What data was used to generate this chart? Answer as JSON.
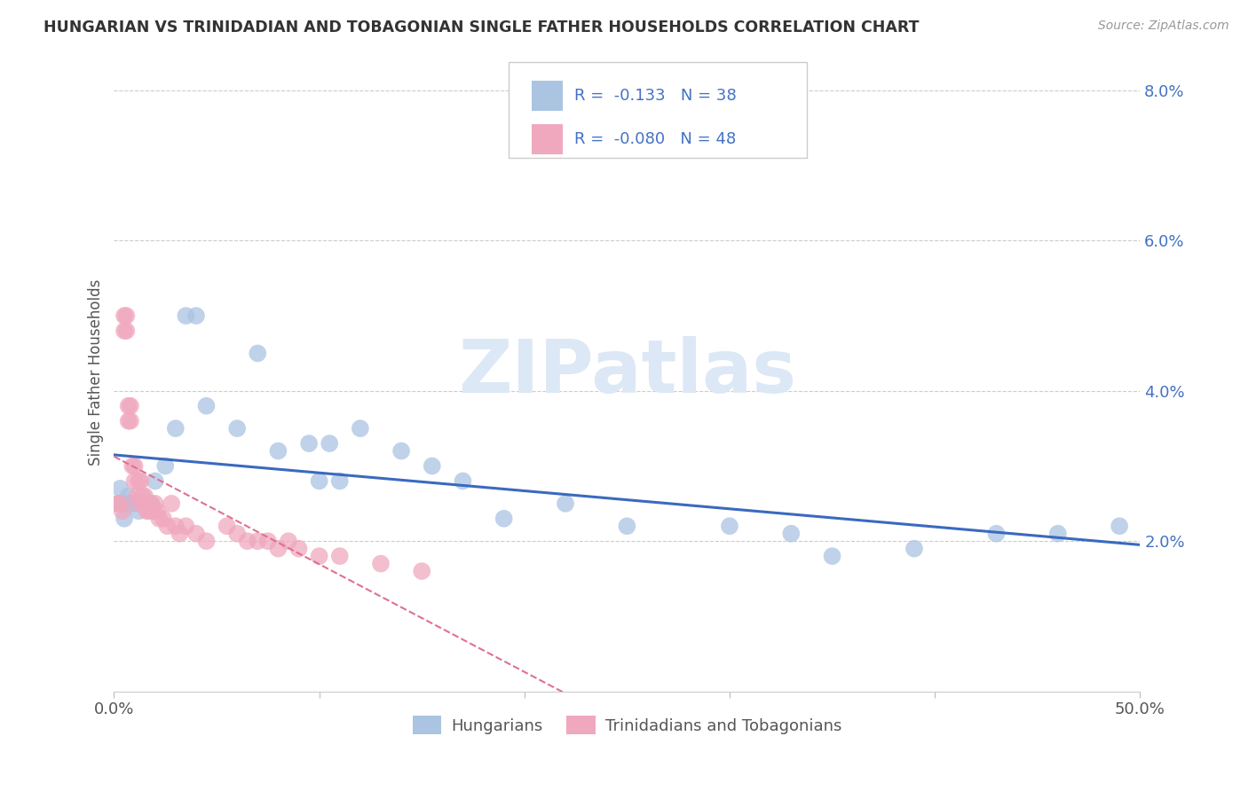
{
  "title": "HUNGARIAN VS TRINIDADIAN AND TOBAGONIAN SINGLE FATHER HOUSEHOLDS CORRELATION CHART",
  "source": "Source: ZipAtlas.com",
  "ylabel": "Single Father Households",
  "xlim": [
    0.0,
    0.5
  ],
  "ylim": [
    0.0,
    0.085
  ],
  "ytick_vals": [
    0.02,
    0.04,
    0.06,
    0.08
  ],
  "ytick_labels": [
    "2.0%",
    "4.0%",
    "6.0%",
    "8.0%"
  ],
  "xtick_vals": [
    0.0,
    0.1,
    0.2,
    0.3,
    0.4,
    0.5
  ],
  "xtick_labels": [
    "0.0%",
    "",
    "",
    "",
    "",
    "50.0%"
  ],
  "hungarian_color": "#aac4e2",
  "trinidadian_color": "#f0a8be",
  "hungarian_line_color": "#3a6abf",
  "trinidadian_line_color": "#e07090",
  "R_hungarian": -0.133,
  "N_hungarian": 38,
  "R_trinidadian": -0.08,
  "N_trinidadian": 48,
  "legend_labels": [
    "Hungarians",
    "Trinidadians and Tobagonians"
  ],
  "watermark_text": "ZIPatlas",
  "hun_x": [
    0.002,
    0.003,
    0.004,
    0.005,
    0.006,
    0.007,
    0.008,
    0.01,
    0.012,
    0.015,
    0.018,
    0.02,
    0.025,
    0.03,
    0.035,
    0.04,
    0.045,
    0.06,
    0.07,
    0.08,
    0.095,
    0.1,
    0.105,
    0.11,
    0.12,
    0.14,
    0.155,
    0.17,
    0.19,
    0.22,
    0.25,
    0.3,
    0.33,
    0.35,
    0.39,
    0.43,
    0.46,
    0.49
  ],
  "hun_y": [
    0.025,
    0.027,
    0.025,
    0.023,
    0.025,
    0.026,
    0.025,
    0.025,
    0.024,
    0.025,
    0.025,
    0.028,
    0.03,
    0.035,
    0.05,
    0.05,
    0.038,
    0.035,
    0.045,
    0.032,
    0.033,
    0.028,
    0.033,
    0.028,
    0.035,
    0.032,
    0.03,
    0.028,
    0.023,
    0.025,
    0.022,
    0.022,
    0.021,
    0.018,
    0.019,
    0.021,
    0.021,
    0.022
  ],
  "tri_x": [
    0.002,
    0.003,
    0.004,
    0.005,
    0.005,
    0.006,
    0.006,
    0.007,
    0.007,
    0.008,
    0.008,
    0.009,
    0.01,
    0.01,
    0.011,
    0.012,
    0.012,
    0.013,
    0.014,
    0.015,
    0.015,
    0.016,
    0.017,
    0.018,
    0.019,
    0.02,
    0.021,
    0.022,
    0.024,
    0.026,
    0.028,
    0.03,
    0.032,
    0.035,
    0.04,
    0.045,
    0.055,
    0.06,
    0.065,
    0.07,
    0.075,
    0.08,
    0.085,
    0.09,
    0.1,
    0.11,
    0.13,
    0.15
  ],
  "tri_y": [
    0.025,
    0.025,
    0.024,
    0.05,
    0.048,
    0.05,
    0.048,
    0.038,
    0.036,
    0.038,
    0.036,
    0.03,
    0.03,
    0.028,
    0.026,
    0.028,
    0.025,
    0.028,
    0.026,
    0.026,
    0.025,
    0.024,
    0.024,
    0.025,
    0.024,
    0.025,
    0.024,
    0.023,
    0.023,
    0.022,
    0.025,
    0.022,
    0.021,
    0.022,
    0.021,
    0.02,
    0.022,
    0.021,
    0.02,
    0.02,
    0.02,
    0.019,
    0.02,
    0.019,
    0.018,
    0.018,
    0.017,
    0.016
  ]
}
